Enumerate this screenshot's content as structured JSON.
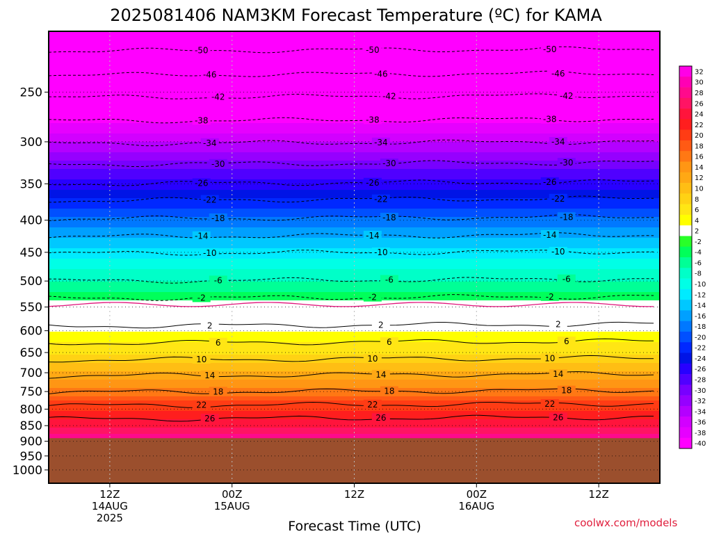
{
  "chart_data": {
    "type": "heatmap",
    "title": "2025081406 NAM3KM Forecast Temperature (ºC) for KAMA",
    "xlabel": "Forecast Time (UTC)",
    "ylabel": "",
    "credit": "coolwx.com/models",
    "y_scale": "log",
    "y_inverted": true,
    "ylim": [
      1050,
      200
    ],
    "yticks": [
      250,
      300,
      350,
      400,
      450,
      500,
      550,
      600,
      650,
      700,
      750,
      800,
      850,
      900,
      950,
      1000
    ],
    "x_hours": [
      0,
      60
    ],
    "x_ticks": [
      {
        "hour": 12,
        "lines": [
          "12Z",
          "14AUG",
          "2025"
        ]
      },
      {
        "hour": 24,
        "lines": [
          "00Z",
          "15AUG"
        ]
      },
      {
        "hour": 36,
        "lines": [
          "12Z"
        ]
      },
      {
        "hour": 48,
        "lines": [
          "00Z",
          "16AUG"
        ]
      },
      {
        "hour": 60,
        "lines": [
          "12Z"
        ]
      }
    ],
    "terrain_pressure": 890,
    "terrain_color": "#9b4f2d",
    "colorbar": {
      "levels": [
        "32",
        "30",
        "28",
        "26",
        "24",
        "22",
        "20",
        "18",
        "16",
        "14",
        "12",
        "10",
        "8",
        "6",
        "4",
        "2",
        "-2",
        "-4",
        "-6",
        "-8",
        "-10",
        "-12",
        "-14",
        "-16",
        "-18",
        "-20",
        "-22",
        "-24",
        "-26",
        "-28",
        "-30",
        "-32",
        "-34",
        "-36",
        "-38",
        "-40"
      ],
      "colors": [
        "#ff00e6",
        "#ff00b4",
        "#ff0a8c",
        "#ff1464",
        "#ff143c",
        "#ff1e1e",
        "#ff3c14",
        "#ff5a14",
        "#ff7814",
        "#ff9614",
        "#ffa814",
        "#ffbe14",
        "#ffd214",
        "#ffe614",
        "#ffff00",
        "#ffffff",
        "#28ff28",
        "#00ff5a",
        "#00ff96",
        "#00ffc8",
        "#00ffe6",
        "#00ebff",
        "#00c8ff",
        "#00a0ff",
        "#0078ff",
        "#0050ff",
        "#0028ff",
        "#0014e6",
        "#2800ff",
        "#5000ff",
        "#7800ff",
        "#9600ff",
        "#b400ff",
        "#d200ff",
        "#e600ff",
        "#ff00ff"
      ]
    },
    "temperature_profile": [
      {
        "p": 200,
        "t": -54
      },
      {
        "p": 225,
        "t": -49
      },
      {
        "p": 250,
        "t": -44
      },
      {
        "p": 275,
        "t": -39
      },
      {
        "p": 300,
        "t": -34
      },
      {
        "p": 325,
        "t": -29
      },
      {
        "p": 350,
        "t": -25
      },
      {
        "p": 375,
        "t": -21
      },
      {
        "p": 400,
        "t": -17
      },
      {
        "p": 425,
        "t": -14
      },
      {
        "p": 450,
        "t": -11
      },
      {
        "p": 475,
        "t": -8
      },
      {
        "p": 500,
        "t": -6
      },
      {
        "p": 525,
        "t": -3
      },
      {
        "p": 550,
        "t": 0
      },
      {
        "p": 575,
        "t": 2
      },
      {
        "p": 600,
        "t": 4
      },
      {
        "p": 625,
        "t": 6
      },
      {
        "p": 650,
        "t": 8
      },
      {
        "p": 675,
        "t": 10
      },
      {
        "p": 700,
        "t": 13
      },
      {
        "p": 725,
        "t": 15
      },
      {
        "p": 750,
        "t": 17
      },
      {
        "p": 775,
        "t": 20
      },
      {
        "p": 800,
        "t": 22
      },
      {
        "p": 825,
        "t": 24
      },
      {
        "p": 850,
        "t": 26
      },
      {
        "p": 875,
        "t": 28
      },
      {
        "p": 900,
        "t": 30
      }
    ],
    "contours": [
      {
        "value": "-50",
        "p": 215,
        "style": "dashed"
      },
      {
        "value": "-46",
        "p": 235,
        "style": "dashed"
      },
      {
        "value": "-42",
        "p": 255,
        "style": "dashed"
      },
      {
        "value": "-38",
        "p": 278,
        "style": "dashed"
      },
      {
        "value": "-34",
        "p": 302,
        "style": "dashed"
      },
      {
        "value": "-30",
        "p": 326,
        "style": "dashed"
      },
      {
        "value": "-26",
        "p": 350,
        "style": "dashed"
      },
      {
        "value": "-22",
        "p": 372,
        "style": "dashed"
      },
      {
        "value": "-18",
        "p": 398,
        "style": "dashed"
      },
      {
        "value": "-14",
        "p": 425,
        "style": "dashed"
      },
      {
        "value": "-10",
        "p": 452,
        "style": "dashed"
      },
      {
        "value": "-6",
        "p": 500,
        "style": "dashed"
      },
      {
        "value": "-2",
        "p": 533,
        "style": "dashed"
      },
      {
        "value": "2",
        "p": 590,
        "style": "solid"
      },
      {
        "value": "6",
        "p": 628,
        "style": "solid"
      },
      {
        "value": "10",
        "p": 668,
        "style": "solid"
      },
      {
        "value": "14",
        "p": 708,
        "style": "solid"
      },
      {
        "value": "18",
        "p": 752,
        "style": "solid"
      },
      {
        "value": "22",
        "p": 790,
        "style": "solid"
      },
      {
        "value": "26",
        "p": 830,
        "style": "solid"
      }
    ]
  }
}
